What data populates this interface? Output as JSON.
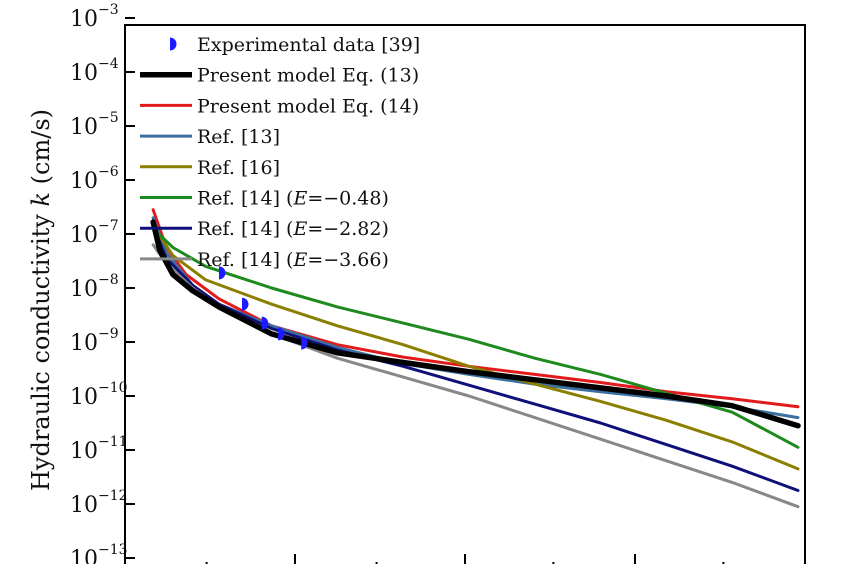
{
  "chart_data": {
    "type": "line",
    "ylabel_main": "Hydraulic conductivity ",
    "ylabel_var": "k",
    "ylabel_unit": " (cm/s)",
    "ylim_log10": [
      -13,
      -3
    ],
    "yscale": "log",
    "grid": false,
    "legend_position": "top-left",
    "y_ticks": [
      {
        "base": "10",
        "exp": "−3",
        "value": -3
      },
      {
        "base": "10",
        "exp": "−4",
        "value": -4
      },
      {
        "base": "10",
        "exp": "−5",
        "value": -5
      },
      {
        "base": "10",
        "exp": "−6",
        "value": -6
      },
      {
        "base": "10",
        "exp": "−7",
        "value": -7
      },
      {
        "base": "10",
        "exp": "−8",
        "value": -8
      },
      {
        "base": "10",
        "exp": "−9",
        "value": -9
      },
      {
        "base": "10",
        "exp": "−10",
        "value": -10
      },
      {
        "base": "10",
        "exp": "−11",
        "value": -11
      },
      {
        "base": "10",
        "exp": "−12",
        "value": -12
      },
      {
        "base": "10",
        "exp": "−13",
        "value": -13
      }
    ],
    "x_range": [
      0,
      1
    ],
    "experimental": {
      "name": "Experimental data [39]",
      "color": "#1c1cff",
      "points": [
        {
          "x": 0.12,
          "log10k": -7.72
        },
        {
          "x": 0.155,
          "log10k": -8.3
        },
        {
          "x": 0.185,
          "log10k": -8.65
        },
        {
          "x": 0.21,
          "log10k": -8.85
        },
        {
          "x": 0.245,
          "log10k": -9.02
        }
      ]
    },
    "series": [
      {
        "name": "Present model Eq. (13)",
        "color": "#000000",
        "width": 5.5,
        "points": [
          [
            0.02,
            -6.78
          ],
          [
            0.03,
            -7.3
          ],
          [
            0.05,
            -7.75
          ],
          [
            0.08,
            -8.05
          ],
          [
            0.12,
            -8.35
          ],
          [
            0.2,
            -8.85
          ],
          [
            0.3,
            -9.2
          ],
          [
            0.4,
            -9.38
          ],
          [
            0.5,
            -9.55
          ],
          [
            0.6,
            -9.7
          ],
          [
            0.7,
            -9.85
          ],
          [
            0.8,
            -10.0
          ],
          [
            0.9,
            -10.18
          ],
          [
            1.0,
            -10.55
          ]
        ]
      },
      {
        "name": "Present model Eq. (14)",
        "color": "#e31a1c",
        "width": 3,
        "points": [
          [
            0.02,
            -6.55
          ],
          [
            0.04,
            -7.25
          ],
          [
            0.07,
            -7.75
          ],
          [
            0.12,
            -8.2
          ],
          [
            0.2,
            -8.7
          ],
          [
            0.3,
            -9.05
          ],
          [
            0.4,
            -9.28
          ],
          [
            0.5,
            -9.45
          ],
          [
            0.6,
            -9.6
          ],
          [
            0.7,
            -9.75
          ],
          [
            0.8,
            -9.92
          ],
          [
            0.9,
            -10.05
          ],
          [
            1.0,
            -10.2
          ]
        ]
      },
      {
        "name": "Ref. [13]",
        "color": "#3b6fa0",
        "width": 3,
        "points": [
          [
            0.02,
            -6.7
          ],
          [
            0.04,
            -7.35
          ],
          [
            0.08,
            -7.95
          ],
          [
            0.12,
            -8.3
          ],
          [
            0.2,
            -8.7
          ],
          [
            0.3,
            -9.1
          ],
          [
            0.4,
            -9.4
          ],
          [
            0.5,
            -9.6
          ],
          [
            0.6,
            -9.78
          ],
          [
            0.7,
            -9.92
          ],
          [
            0.8,
            -10.05
          ],
          [
            0.9,
            -10.2
          ],
          [
            1.0,
            -10.4
          ]
        ]
      },
      {
        "name": "Ref. [16]",
        "color": "#8b7e00",
        "width": 3,
        "points": [
          [
            0.02,
            -6.85
          ],
          [
            0.05,
            -7.4
          ],
          [
            0.1,
            -7.85
          ],
          [
            0.2,
            -8.3
          ],
          [
            0.3,
            -8.7
          ],
          [
            0.4,
            -9.05
          ],
          [
            0.5,
            -9.45
          ],
          [
            0.6,
            -9.78
          ],
          [
            0.7,
            -10.1
          ],
          [
            0.8,
            -10.45
          ],
          [
            0.9,
            -10.85
          ],
          [
            1.0,
            -11.35
          ]
        ]
      },
      {
        "name": "Ref. [14] (E=−0.48)",
        "color": "#1e8a1e",
        "width": 3,
        "points": [
          [
            0.02,
            -6.9
          ],
          [
            0.05,
            -7.25
          ],
          [
            0.1,
            -7.6
          ],
          [
            0.2,
            -8.0
          ],
          [
            0.3,
            -8.35
          ],
          [
            0.4,
            -8.65
          ],
          [
            0.5,
            -8.95
          ],
          [
            0.6,
            -9.3
          ],
          [
            0.7,
            -9.6
          ],
          [
            0.8,
            -9.95
          ],
          [
            0.9,
            -10.3
          ],
          [
            1.0,
            -10.95
          ]
        ]
      },
      {
        "name": "Ref. [14] (E=−2.82)",
        "color": "#10107a",
        "width": 3,
        "points": [
          [
            0.02,
            -6.85
          ],
          [
            0.04,
            -7.45
          ],
          [
            0.08,
            -7.95
          ],
          [
            0.12,
            -8.3
          ],
          [
            0.2,
            -8.75
          ],
          [
            0.3,
            -9.15
          ],
          [
            0.4,
            -9.45
          ],
          [
            0.5,
            -9.8
          ],
          [
            0.6,
            -10.15
          ],
          [
            0.7,
            -10.5
          ],
          [
            0.8,
            -10.9
          ],
          [
            0.9,
            -11.3
          ],
          [
            1.0,
            -11.75
          ]
        ]
      },
      {
        "name": "Ref. [14] (E=−3.66)",
        "color": "#888888",
        "width": 3,
        "points": [
          [
            0.02,
            -7.2
          ],
          [
            0.04,
            -7.55
          ],
          [
            0.08,
            -8.0
          ],
          [
            0.12,
            -8.35
          ],
          [
            0.2,
            -8.85
          ],
          [
            0.3,
            -9.3
          ],
          [
            0.4,
            -9.65
          ],
          [
            0.5,
            -10.0
          ],
          [
            0.6,
            -10.4
          ],
          [
            0.7,
            -10.8
          ],
          [
            0.8,
            -11.2
          ],
          [
            0.9,
            -11.6
          ],
          [
            1.0,
            -12.05
          ]
        ]
      }
    ]
  },
  "legend": [
    {
      "kind": "marker",
      "label": "Experimental data [39]",
      "color": "#1c1cff"
    },
    {
      "kind": "line",
      "label": "Present model Eq. (13)",
      "color": "#000000",
      "width": 5.5
    },
    {
      "kind": "line",
      "label": "Present model Eq. (14)",
      "color": "#e31a1c",
      "width": 3
    },
    {
      "kind": "line",
      "label": "Ref. [13]",
      "color": "#3b6fa0",
      "width": 3
    },
    {
      "kind": "line",
      "label": "Ref. [16]",
      "color": "#8b7e00",
      "width": 3
    },
    {
      "kind": "line",
      "label_parts": [
        "Ref. [14] (",
        "E",
        "=−0.48)"
      ],
      "color": "#1e8a1e",
      "width": 3
    },
    {
      "kind": "line",
      "label_parts": [
        "Ref. [14] (",
        "E",
        "=−2.82)"
      ],
      "color": "#10107a",
      "width": 3
    },
    {
      "kind": "line",
      "label_parts": [
        "Ref. [14] (",
        "E",
        "=−3.66)"
      ],
      "color": "#888888",
      "width": 3
    }
  ]
}
